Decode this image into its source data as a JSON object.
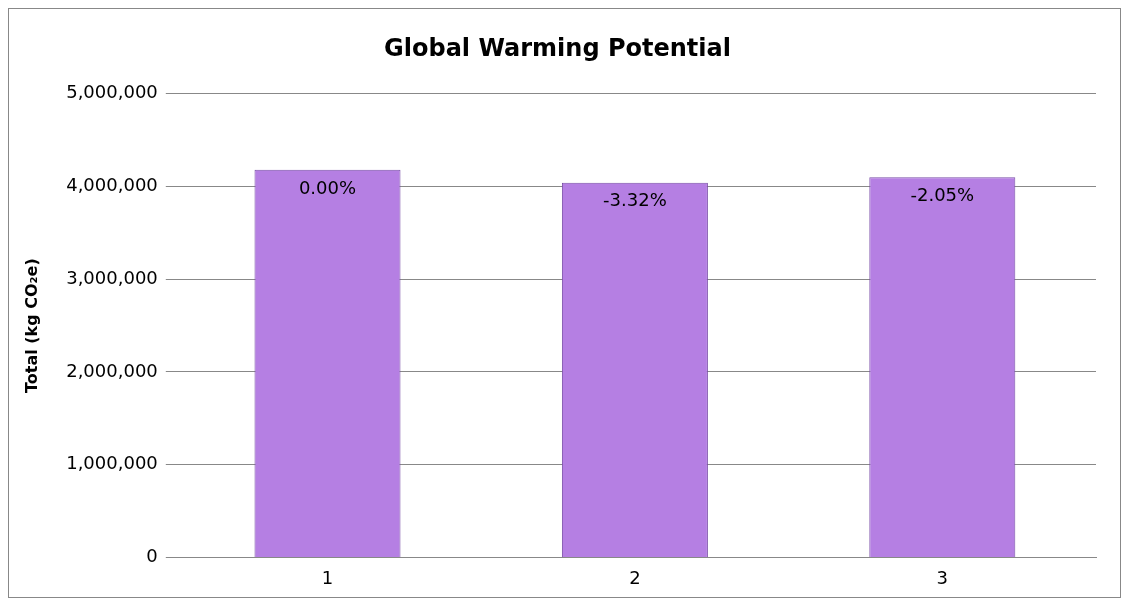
{
  "chart_data": {
    "type": "bar",
    "title": "Global Warming Potential",
    "ylabel": "Total (kg CO₂e)",
    "categories": [
      "1",
      "2",
      "3"
    ],
    "values": [
      4180000,
      4040000,
      4100000
    ],
    "annotations": [
      {
        "text": "0.00%",
        "x": "1",
        "y": 4180000
      },
      {
        "text": "-3.32%",
        "x": "2",
        "y": 4040000
      },
      {
        "text": "-2.05%",
        "x": "3",
        "y": 4100000
      }
    ],
    "color": "#b57fe3",
    "ylim": [
      0,
      5000000
    ],
    "yticks": [
      {
        "value": 0,
        "label": "0"
      },
      {
        "value": 1000000,
        "label": "1,000,000"
      },
      {
        "value": 2000000,
        "label": "2,000,000"
      },
      {
        "value": 3000000,
        "label": "3,000,000"
      },
      {
        "value": 4000000,
        "label": "4,000,000"
      },
      {
        "value": 5000000,
        "label": "5,000,000"
      }
    ],
    "grid": "y",
    "legend": false
  }
}
